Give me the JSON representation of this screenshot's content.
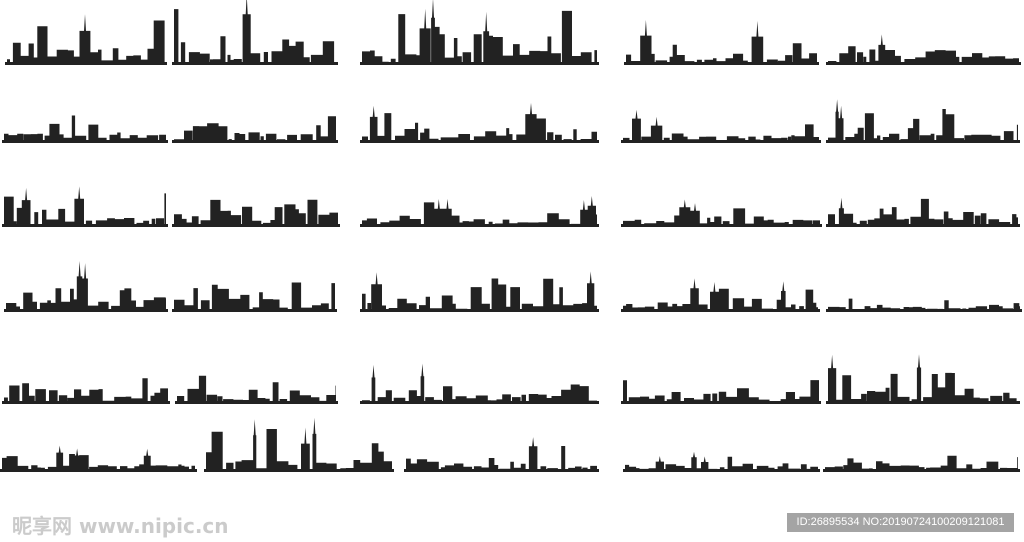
{
  "watermark": {
    "site": "昵享网 www.nipic.cn",
    "id": "ID:26895534 NO:20190724100209121081"
  }
}
